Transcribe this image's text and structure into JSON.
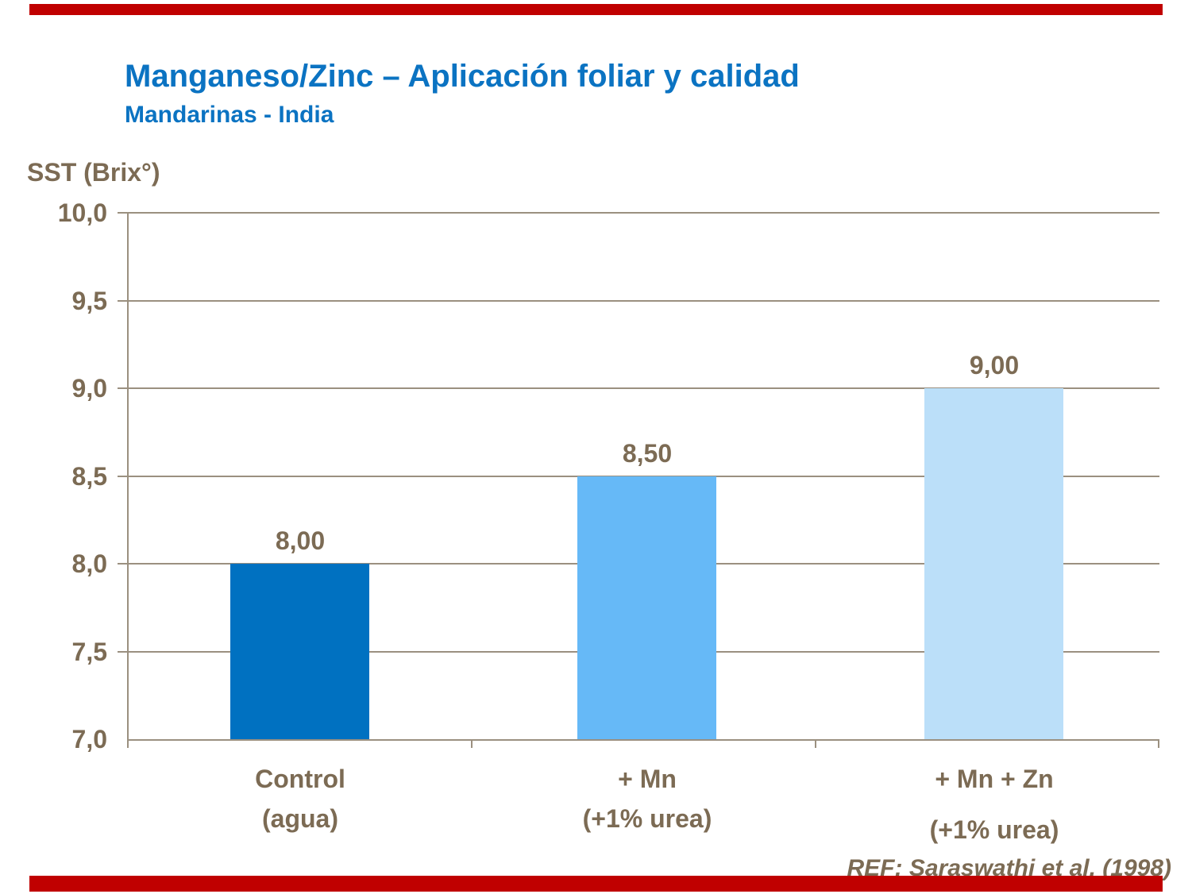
{
  "slide": {
    "title": "Manganeso/Zinc – Aplicación foliar y calidad",
    "subtitle": "Mandarinas - India",
    "reference": "REF: Saraswathi et al. (1998)"
  },
  "colors": {
    "accent_red": "#c00000",
    "title_blue": "#0b73c2",
    "text_brown": "#7c6b54",
    "axis_gray": "#9b9080"
  },
  "chart_data": {
    "type": "bar",
    "title": "Manganeso/Zinc – Aplicación foliar y calidad",
    "subtitle": "Mandarinas - India",
    "ylabel": "SST (Brix°)",
    "xlabel": "",
    "categories": [
      {
        "line1": "Control",
        "line2": "(agua)"
      },
      {
        "line1": "+ Mn",
        "line2": "(+1% urea)"
      },
      {
        "line1": "+ Mn + Zn",
        "line2": "(+1% urea)"
      }
    ],
    "values": [
      8.0,
      8.5,
      9.0
    ],
    "value_labels": [
      "8,00",
      "8,50",
      "9,00"
    ],
    "bar_colors": [
      "#0071c1",
      "#66b9f7",
      "#bbdff9"
    ],
    "ylim": [
      7.0,
      10.0
    ],
    "ystep": 0.5,
    "ytick_labels": [
      "10,0",
      "9,5",
      "9,0",
      "8,5",
      "8,0",
      "7,5",
      "7,0"
    ],
    "grid": true,
    "legend": "none"
  }
}
